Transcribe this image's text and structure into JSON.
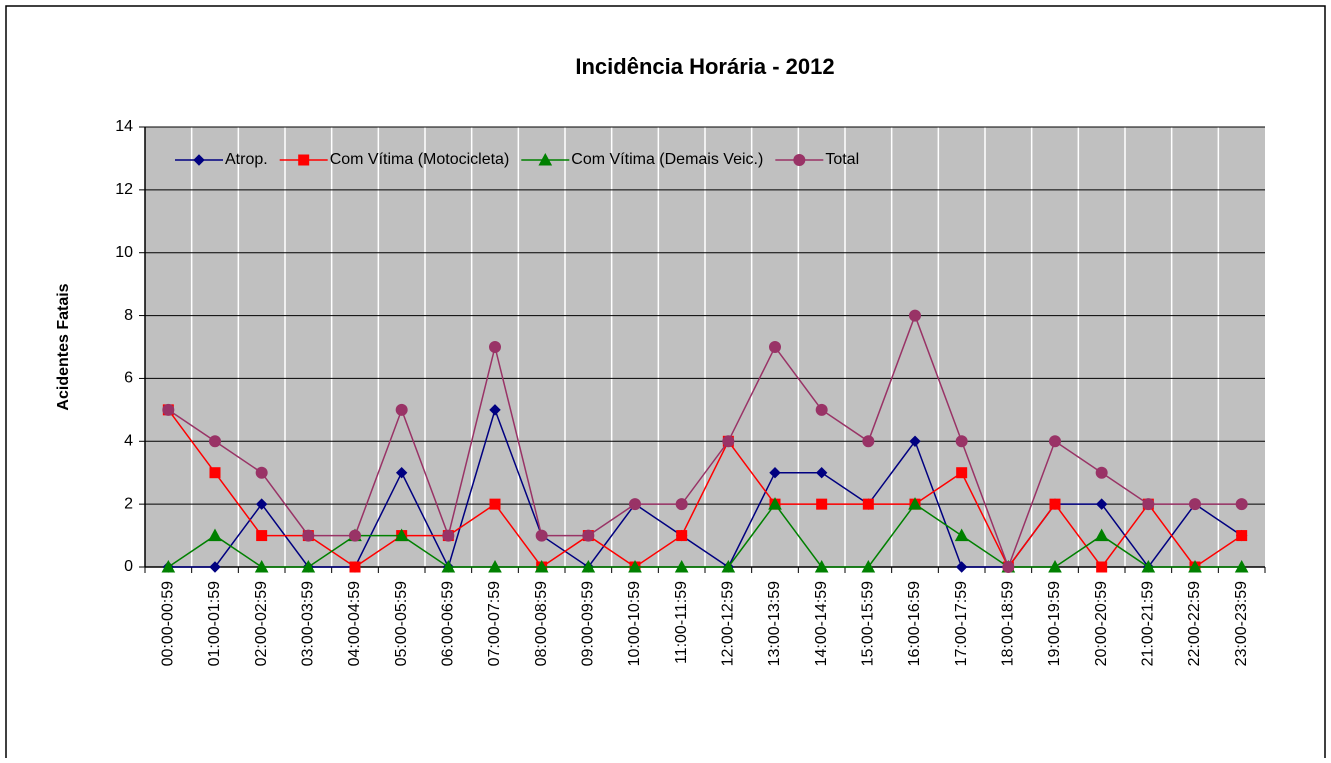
{
  "chart_data": {
    "type": "line",
    "title": "Incidência Horária - 2012",
    "y_label": "Acidentes Fatais",
    "categories": [
      "00:00-00:59",
      "01:00-01:59",
      "02:00-02:59",
      "03:00-03:59",
      "04:00-04:59",
      "05:00-05:59",
      "06:00-06:59",
      "07:00-07:59",
      "08:00-08:59",
      "09:00-09:59",
      "10:00-10:59",
      "11:00-11:59",
      "12:00-12:59",
      "13:00-13:59",
      "14:00-14:59",
      "15:00-15:59",
      "16:00-16:59",
      "17:00-17:59",
      "18:00-18:59",
      "19:00-19:59",
      "20:00-20:59",
      "21:00-21:59",
      "22:00-22:59",
      "23:00-23:59"
    ],
    "series": [
      {
        "name": "Atrop.",
        "color": "#000080",
        "marker": "diamond",
        "values": [
          0,
          0,
          2,
          0,
          0,
          3,
          0,
          5,
          1,
          0,
          2,
          1,
          0,
          3,
          3,
          2,
          4,
          0,
          0,
          2,
          2,
          0,
          2,
          1
        ]
      },
      {
        "name": "Com Vítima (Motocicleta)",
        "color": "#ff0000",
        "marker": "square",
        "values": [
          5,
          3,
          1,
          1,
          0,
          1,
          1,
          2,
          0,
          1,
          0,
          1,
          4,
          2,
          2,
          2,
          2,
          3,
          0,
          2,
          0,
          2,
          0,
          1
        ]
      },
      {
        "name": "Com Vítima (Demais Veic.)",
        "color": "#008000",
        "marker": "triangle",
        "values": [
          0,
          1,
          0,
          0,
          1,
          1,
          0,
          0,
          0,
          0,
          0,
          0,
          0,
          2,
          0,
          0,
          2,
          1,
          0,
          0,
          1,
          0,
          0,
          0
        ]
      },
      {
        "name": "Total",
        "color": "#993366",
        "marker": "circle",
        "values": [
          5,
          4,
          3,
          1,
          1,
          5,
          1,
          7,
          1,
          1,
          2,
          2,
          4,
          7,
          5,
          4,
          8,
          4,
          0,
          4,
          3,
          2,
          2,
          2
        ]
      }
    ],
    "ylim": [
      0,
      14
    ],
    "yticks": [
      0,
      2,
      4,
      6,
      8,
      10,
      12,
      14
    ],
    "grid": true,
    "legend": "top"
  }
}
